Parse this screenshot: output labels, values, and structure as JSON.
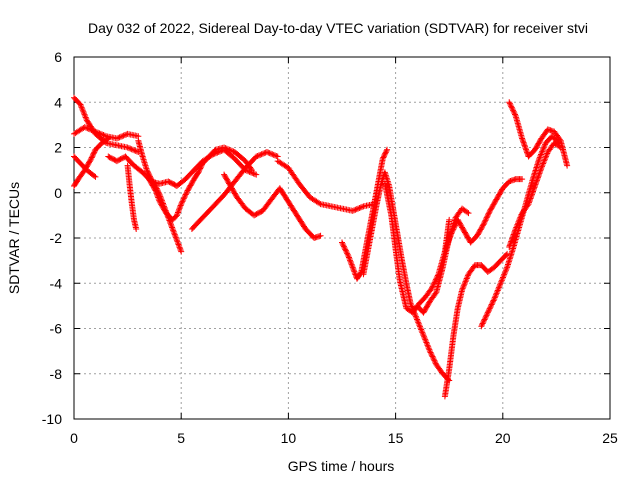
{
  "chart_data": {
    "type": "scatter",
    "title": "Day 032 of 2022, Sidereal Day-to-day VTEC variation (SDTVAR) for receiver stvi",
    "xlabel": "GPS time / hours",
    "ylabel": "SDTVAR / TECUs",
    "xlim": [
      0,
      25
    ],
    "ylim": [
      -10,
      6
    ],
    "xticks": [
      "0",
      "5",
      "10",
      "15",
      "20",
      "25"
    ],
    "yticks": [
      "-10",
      "-8",
      "-6",
      "-4",
      "-2",
      "0",
      "2",
      "4",
      "6"
    ],
    "xtick_values": [
      0,
      5,
      10,
      15,
      20,
      25
    ],
    "ytick_values": [
      -10,
      -8,
      -6,
      -4,
      -2,
      0,
      2,
      4,
      6
    ],
    "grid": true,
    "marker": "plus",
    "color": "#ff0000",
    "series": [
      {
        "x": [
          0.0,
          0.3,
          0.6,
          1.0,
          1.5,
          2.0,
          2.5,
          3.0
        ],
        "y": [
          4.2,
          3.9,
          3.2,
          2.6,
          2.2,
          2.1,
          2.0,
          1.8
        ]
      },
      {
        "x": [
          0.0,
          0.5,
          1.0,
          1.5,
          2.0,
          2.5,
          3.0
        ],
        "y": [
          2.6,
          2.9,
          2.7,
          2.5,
          2.4,
          2.6,
          2.5
        ]
      },
      {
        "x": [
          0.0,
          0.3,
          0.6,
          1.0
        ],
        "y": [
          1.6,
          1.3,
          1.0,
          0.7
        ]
      },
      {
        "x": [
          0.0,
          0.2,
          0.5,
          0.8,
          1.0,
          1.3,
          1.6
        ],
        "y": [
          0.3,
          0.6,
          1.0,
          1.5,
          1.9,
          2.2,
          2.4
        ]
      },
      {
        "x": [
          1.6,
          2.0,
          2.4,
          2.8,
          3.2,
          3.6,
          4.0,
          4.4,
          4.8,
          5.2,
          5.6,
          6.0,
          6.5,
          7.0,
          7.5,
          8.0,
          8.5
        ],
        "y": [
          1.6,
          1.4,
          1.6,
          1.2,
          0.9,
          0.5,
          0.4,
          0.5,
          0.3,
          0.6,
          1.0,
          1.4,
          1.7,
          1.9,
          1.5,
          1.0,
          0.8
        ]
      },
      {
        "x": [
          2.5,
          2.6,
          2.7,
          2.8,
          2.9
        ],
        "y": [
          1.2,
          0.3,
          -0.5,
          -1.2,
          -1.6
        ]
      },
      {
        "x": [
          3.0,
          3.2,
          3.4,
          3.6,
          3.8,
          4.0,
          4.2,
          4.4,
          4.6,
          4.8,
          5.0
        ],
        "y": [
          2.3,
          1.6,
          1.0,
          0.6,
          0.3,
          -0.1,
          -0.6,
          -1.1,
          -1.6,
          -2.1,
          -2.6
        ]
      },
      {
        "x": [
          3.5,
          3.8,
          4.0,
          4.3,
          4.6,
          4.8,
          5.0,
          5.3,
          5.6,
          5.8,
          6.0,
          6.3,
          6.6,
          7.0,
          7.5,
          8.0,
          8.3
        ],
        "y": [
          0.6,
          0.1,
          -0.4,
          -0.9,
          -1.2,
          -1.0,
          -0.5,
          0.1,
          0.6,
          0.9,
          1.3,
          1.6,
          1.9,
          2.0,
          1.8,
          1.4,
          1.0
        ]
      },
      {
        "x": [
          5.5,
          6.0,
          6.5,
          7.0,
          7.5,
          8.0,
          8.5,
          9.0,
          9.5
        ],
        "y": [
          -1.6,
          -1.1,
          -0.6,
          -0.1,
          0.5,
          1.1,
          1.6,
          1.8,
          1.6
        ]
      },
      {
        "x": [
          7.0,
          7.3,
          7.6,
          8.0,
          8.4,
          8.8,
          9.2,
          9.6,
          10.0,
          10.4,
          10.8,
          11.2,
          11.5
        ],
        "y": [
          0.8,
          0.3,
          -0.2,
          -0.7,
          -1.0,
          -0.8,
          -0.3,
          0.2,
          -0.4,
          -1.0,
          -1.6,
          -2.0,
          -1.9
        ]
      },
      {
        "x": [
          9.5,
          10.0,
          10.5,
          11.0,
          11.5,
          12.0,
          12.5,
          13.0,
          13.5,
          14.0
        ],
        "y": [
          1.4,
          1.1,
          0.4,
          -0.2,
          -0.5,
          -0.6,
          -0.7,
          -0.8,
          -0.6,
          -0.5
        ]
      },
      {
        "x": [
          12.5,
          12.8,
          13.0,
          13.2,
          13.4,
          13.6,
          13.8,
          14.0,
          14.2,
          14.4,
          14.6
        ],
        "y": [
          -2.2,
          -2.8,
          -3.3,
          -3.8,
          -3.5,
          -2.5,
          -1.5,
          -0.5,
          0.5,
          1.5,
          1.9
        ]
      },
      {
        "x": [
          13.5,
          13.7,
          13.9,
          14.1,
          14.3,
          14.5,
          14.7,
          14.9,
          15.1,
          15.3,
          15.5,
          15.7,
          16.0,
          16.3,
          16.6,
          16.9,
          17.2,
          17.5
        ],
        "y": [
          -3.6,
          -2.6,
          -1.6,
          -0.6,
          0.3,
          0.9,
          0.3,
          -0.8,
          -1.9,
          -3.0,
          -4.0,
          -4.9,
          -5.6,
          -6.3,
          -7.0,
          -7.6,
          -8.0,
          -8.3
        ]
      },
      {
        "x": [
          14.5,
          14.8,
          15.0,
          15.2,
          15.5,
          15.8,
          16.1,
          16.4,
          16.7,
          17.0,
          17.3,
          17.5
        ],
        "y": [
          0.4,
          -1.0,
          -2.5,
          -3.9,
          -5.1,
          -5.3,
          -4.9,
          -4.6,
          -4.2,
          -3.6,
          -2.6,
          -1.2
        ]
      },
      {
        "x": [
          16.0,
          16.3,
          16.6,
          16.9,
          17.2,
          17.5,
          17.8,
          18.1,
          18.4
        ],
        "y": [
          -5.0,
          -5.3,
          -4.8,
          -4.4,
          -3.3,
          -2.0,
          -1.1,
          -0.7,
          -0.9
        ]
      },
      {
        "x": [
          17.3,
          17.5,
          17.7,
          17.9,
          18.1,
          18.4,
          18.7,
          19.0,
          19.3,
          19.6,
          19.9,
          20.2
        ],
        "y": [
          -9.0,
          -7.8,
          -6.3,
          -5.1,
          -4.3,
          -3.6,
          -3.2,
          -3.2,
          -3.5,
          -3.3,
          -3.0,
          -2.7
        ]
      },
      {
        "x": [
          17.3,
          17.6,
          17.9,
          18.2,
          18.5,
          18.8,
          19.1,
          19.4,
          19.7,
          20.0,
          20.3,
          20.6,
          20.9
        ],
        "y": [
          -2.6,
          -1.8,
          -1.2,
          -1.7,
          -2.2,
          -1.9,
          -1.4,
          -0.8,
          -0.3,
          0.2,
          0.5,
          0.6,
          0.6
        ]
      },
      {
        "x": [
          19.0,
          19.3,
          19.6,
          19.9,
          20.2,
          20.5,
          20.8,
          21.1,
          21.4,
          21.7,
          22.0,
          22.3,
          22.6
        ],
        "y": [
          -5.9,
          -5.3,
          -4.7,
          -4.0,
          -3.3,
          -2.4,
          -1.4,
          -0.4,
          0.6,
          1.5,
          2.2,
          2.5,
          2.2
        ]
      },
      {
        "x": [
          20.3,
          20.6,
          20.9,
          21.2,
          21.5,
          21.8,
          22.1,
          22.4,
          22.7,
          23.0
        ],
        "y": [
          4.0,
          3.4,
          2.4,
          1.6,
          1.9,
          2.4,
          2.8,
          2.7,
          2.3,
          1.2
        ]
      },
      {
        "x": [
          20.3,
          20.6,
          20.9,
          21.2,
          21.5,
          21.8,
          22.1,
          22.4,
          22.7
        ],
        "y": [
          -2.4,
          -1.6,
          -0.9,
          -0.5,
          0.3,
          1.1,
          1.8,
          2.2,
          2.0
        ]
      }
    ]
  }
}
